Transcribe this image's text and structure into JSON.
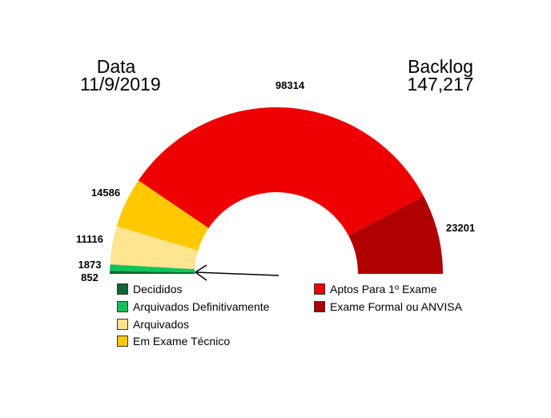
{
  "header": {
    "date_label": "Data",
    "date_value": "11/9/2019",
    "backlog_label": "Backlog",
    "backlog_value": "147,217"
  },
  "chart_data": {
    "type": "pie",
    "subtype": "half-donut",
    "categories": [
      "Decididos",
      "Arquivados Definitivamente",
      "Arquivados",
      "Em Exame Técnico",
      "Aptos Para 1º Exame",
      "Exame Formal ou ANVISA"
    ],
    "values": [
      852,
      1873,
      11116,
      14586,
      98314,
      23201
    ],
    "data_labels": [
      "852",
      "1873",
      "11116",
      "14586",
      "98314",
      "23201"
    ],
    "colors": [
      "#0b6b2e",
      "#12c35a",
      "#ffe590",
      "#ffc800",
      "#ee0000",
      "#b00000"
    ],
    "legend": "bottom",
    "annotation": "arrow pointing to Decididos / Arquivados Definitivamente slices"
  }
}
